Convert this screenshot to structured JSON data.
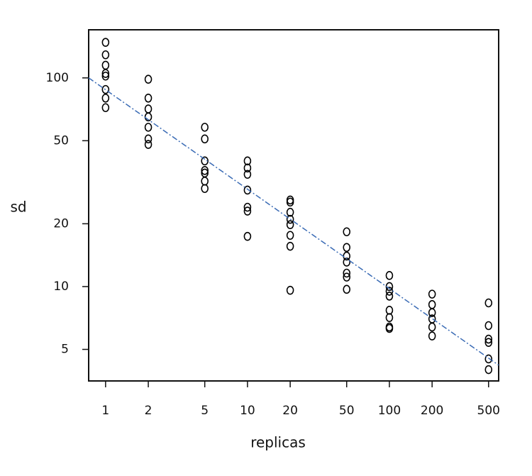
{
  "chart_data": {
    "type": "scatter",
    "xlabel": "replicas",
    "ylabel": "sd",
    "xscale": "log",
    "yscale": "log",
    "xlim": [
      0.76,
      589
    ],
    "ylim": [
      3.53,
      170
    ],
    "xticks": [
      1,
      2,
      5,
      10,
      20,
      50,
      100,
      200,
      500
    ],
    "yticks": [
      5,
      10,
      20,
      50,
      100
    ],
    "series": [
      {
        "type": "scatter",
        "color": "#000000",
        "x": [
          1,
          1,
          1,
          1,
          1,
          1,
          1,
          1,
          2,
          2,
          2,
          2,
          2,
          2,
          2,
          5,
          5,
          5,
          5,
          5,
          5,
          5,
          10,
          10,
          10,
          10,
          10,
          10,
          10,
          20,
          20,
          20,
          20,
          20,
          20,
          20,
          20,
          50,
          50,
          50,
          50,
          50,
          50,
          50,
          100,
          100,
          100,
          100,
          100,
          100,
          100,
          100,
          200,
          200,
          200,
          200,
          200,
          200,
          500,
          500,
          500,
          500,
          500,
          500
        ],
        "values": [
          148,
          129,
          115,
          105,
          102,
          88,
          80,
          72,
          98.5,
          80,
          71,
          65,
          58,
          51,
          48,
          58,
          51,
          40,
          36,
          35,
          32,
          29.5,
          40,
          37,
          34.5,
          29,
          24,
          23,
          17.4,
          26,
          25.4,
          22.7,
          21,
          19.8,
          17.6,
          15.6,
          9.6,
          18.3,
          15.4,
          14,
          13.1,
          11.6,
          11.1,
          9.7,
          11.3,
          10,
          9.5,
          9,
          7.7,
          7.1,
          6.4,
          6.3,
          9.2,
          8.2,
          7.5,
          7,
          6.4,
          5.8,
          8.35,
          6.5,
          5.6,
          5.4,
          4.5,
          4
        ]
      },
      {
        "type": "line",
        "color": "#3a6bb5",
        "x": [
          0.76,
          589
        ],
        "values": [
          100,
          4.2
        ]
      }
    ]
  }
}
